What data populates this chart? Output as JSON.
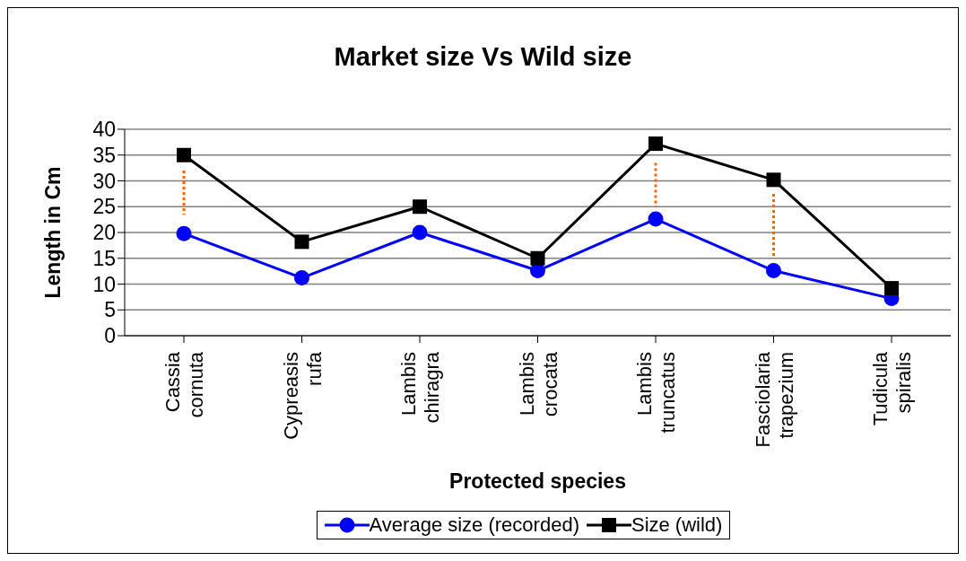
{
  "chart_data": {
    "type": "line",
    "title": "Market size Vs Wild size",
    "xlabel": "Protected species",
    "ylabel": "Length in Cm",
    "categories": [
      "Cassia cornuta",
      "Cypreasis rufa",
      "Lambis chiragra",
      "Lambis crocata",
      "Lambis truncatus",
      "Fasciolaria trapezium",
      "Tudicula spiralis"
    ],
    "series": [
      {
        "name": "Average size (recorded)",
        "color": "#0000ff",
        "marker": "circle",
        "values": [
          19.8,
          11.2,
          20,
          12.6,
          22.6,
          12.6,
          7.2
        ]
      },
      {
        "name": "Size (wild)",
        "color": "#000000",
        "marker": "square",
        "values": [
          35,
          18.2,
          25,
          15,
          37.2,
          30.2,
          9.2
        ]
      },
      {
        "color": "#ff6600",
        "marker": "none",
        "line_style": "dotted",
        "x": [
          "Cassia cornuta",
          "Cassia cornuta"
        ],
        "values": [
          32,
          23.5
        ]
      },
      {
        "color": "#ff6600",
        "marker": "none",
        "line_style": "dotted",
        "x": [
          "Lambis truncatus",
          "Lambis truncatus"
        ],
        "values": [
          33.5,
          25
        ]
      },
      {
        "color": "#ff6600",
        "marker": "none",
        "line_style": "dotted",
        "x": [
          "Fasciolaria trapezium",
          "Fasciolaria trapezium"
        ],
        "values": [
          27.5,
          15.5
        ]
      }
    ],
    "ylim": [
      0,
      40
    ],
    "yticks": [
      0,
      5,
      10,
      15,
      20,
      25,
      30,
      35,
      40
    ],
    "grid": "y",
    "legend": "bottom",
    "line_style": "solid"
  }
}
